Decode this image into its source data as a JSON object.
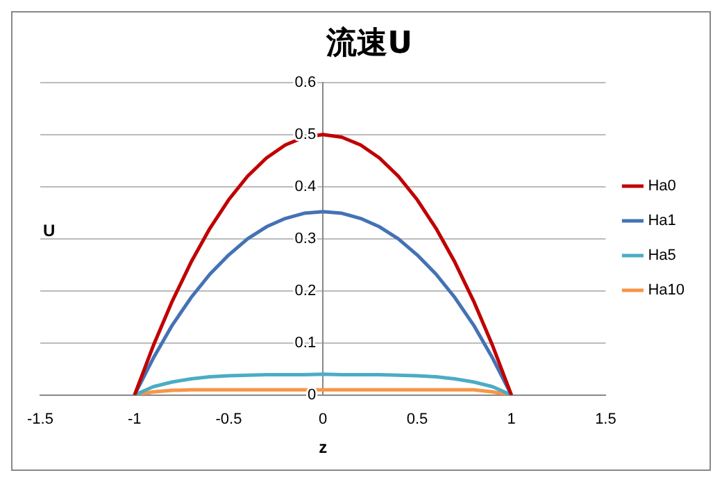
{
  "chart_data": {
    "type": "line",
    "title": "流速U",
    "xlabel": "z",
    "ylabel": "U",
    "x": [
      -1,
      -0.9,
      -0.8,
      -0.7,
      -0.6,
      -0.5,
      -0.4,
      -0.3,
      -0.2,
      -0.1,
      0,
      0.1,
      0.2,
      0.3,
      0.4,
      0.5,
      0.6,
      0.7,
      0.8,
      0.9,
      1
    ],
    "series": [
      {
        "name": "Ha0",
        "color": "#c00000",
        "values": [
          0,
          0.095,
          0.18,
          0.255,
          0.32,
          0.375,
          0.42,
          0.455,
          0.48,
          0.495,
          0.5,
          0.495,
          0.48,
          0.455,
          0.42,
          0.375,
          0.32,
          0.255,
          0.18,
          0.095,
          0
        ]
      },
      {
        "name": "Ha1",
        "color": "#4472b4",
        "values": [
          0,
          0.071,
          0.134,
          0.187,
          0.232,
          0.269,
          0.3,
          0.323,
          0.339,
          0.349,
          0.352,
          0.349,
          0.339,
          0.323,
          0.3,
          0.269,
          0.232,
          0.187,
          0.134,
          0.071,
          0
        ]
      },
      {
        "name": "Ha5",
        "color": "#4bacc6",
        "values": [
          0,
          0.016,
          0.025,
          0.031,
          0.035,
          0.037,
          0.038,
          0.039,
          0.039,
          0.039,
          0.04,
          0.039,
          0.039,
          0.039,
          0.038,
          0.037,
          0.035,
          0.031,
          0.025,
          0.016,
          0
        ]
      },
      {
        "name": "Ha10",
        "color": "#f79646",
        "values": [
          0,
          0.006,
          0.009,
          0.01,
          0.01,
          0.01,
          0.01,
          0.01,
          0.01,
          0.01,
          0.01,
          0.01,
          0.01,
          0.01,
          0.01,
          0.01,
          0.01,
          0.01,
          0.01,
          0.006,
          0
        ]
      }
    ],
    "xlim": [
      -1.5,
      1.5
    ],
    "xticks": [
      -1.5,
      -1,
      -0.5,
      0,
      0.5,
      1,
      1.5
    ],
    "ylim": [
      0,
      0.6
    ],
    "yticks": [
      0,
      0.1,
      0.2,
      0.3,
      0.4,
      0.5,
      0.6
    ],
    "grid": "y",
    "legend": "right",
    "marker": "none",
    "line_style": "solid"
  }
}
